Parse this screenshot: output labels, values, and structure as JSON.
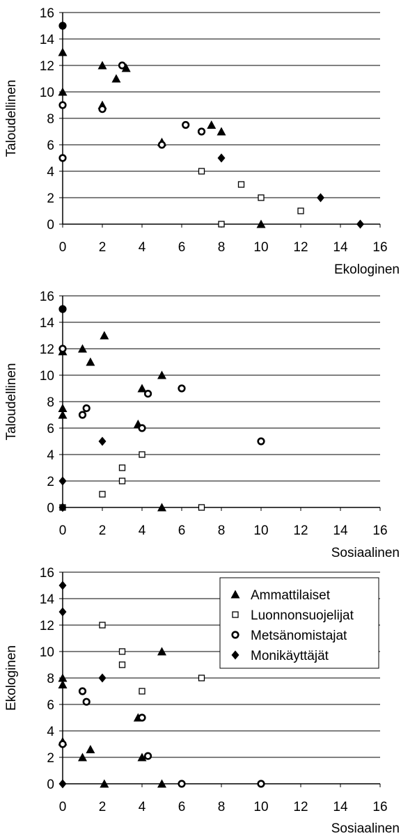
{
  "chart_data": [
    {
      "type": "scatter",
      "xlabel": "Ekologinen",
      "ylabel": "Taloudellinen",
      "xlim": [
        0,
        16
      ],
      "ylim": [
        0,
        16
      ],
      "xticks": [
        0,
        2,
        4,
        6,
        8,
        10,
        12,
        14,
        16
      ],
      "yticks": [
        0,
        2,
        4,
        6,
        8,
        10,
        12,
        14,
        16
      ],
      "grid": "horizontal",
      "series": [
        {
          "name": "Ammattilaiset",
          "marker": "triangle",
          "points": [
            [
              0,
              13
            ],
            [
              0,
              10
            ],
            [
              2,
              12
            ],
            [
              2,
              9
            ],
            [
              2.7,
              11
            ],
            [
              3.2,
              11.8
            ],
            [
              5,
              6.2
            ],
            [
              7.5,
              7.5
            ],
            [
              8,
              7
            ],
            [
              10,
              0
            ]
          ]
        },
        {
          "name": "Luonnonsuojelijat",
          "marker": "square",
          "points": [
            [
              7,
              4
            ],
            [
              8,
              0
            ],
            [
              9,
              3
            ],
            [
              10,
              2
            ],
            [
              12,
              1
            ]
          ]
        },
        {
          "name": "Metsänomistajat",
          "marker": "circle",
          "points": [
            [
              0,
              15
            ],
            [
              0,
              9
            ],
            [
              0,
              5
            ],
            [
              2,
              8.7
            ],
            [
              3,
              12
            ],
            [
              5,
              6
            ],
            [
              6.2,
              7.5
            ],
            [
              7,
              7
            ]
          ]
        },
        {
          "name": "Monikäyttäjät",
          "marker": "diamond",
          "points": [
            [
              0,
              15
            ],
            [
              8,
              5
            ],
            [
              13,
              2
            ],
            [
              15,
              0
            ]
          ]
        }
      ]
    },
    {
      "type": "scatter",
      "xlabel": "Sosiaalinen",
      "ylabel": "Taloudellinen",
      "xlim": [
        0,
        16
      ],
      "ylim": [
        0,
        16
      ],
      "xticks": [
        0,
        2,
        4,
        6,
        8,
        10,
        12,
        14,
        16
      ],
      "yticks": [
        0,
        2,
        4,
        6,
        8,
        10,
        12,
        14,
        16
      ],
      "grid": "horizontal",
      "series": [
        {
          "name": "Ammattilaiset",
          "marker": "triangle",
          "points": [
            [
              0,
              11.8
            ],
            [
              0,
              7.5
            ],
            [
              0,
              7
            ],
            [
              1,
              12
            ],
            [
              1.4,
              11
            ],
            [
              2.1,
              13
            ],
            [
              3.8,
              6.3
            ],
            [
              4,
              9
            ],
            [
              5,
              10
            ],
            [
              5,
              0
            ]
          ]
        },
        {
          "name": "Luonnonsuojelijat",
          "marker": "square",
          "points": [
            [
              0,
              0
            ],
            [
              2,
              1
            ],
            [
              3,
              3
            ],
            [
              3,
              2
            ],
            [
              4,
              4
            ],
            [
              7,
              0
            ]
          ]
        },
        {
          "name": "Metsänomistajat",
          "marker": "circle",
          "points": [
            [
              0,
              15
            ],
            [
              0,
              12
            ],
            [
              1,
              7
            ],
            [
              1.2,
              7.5
            ],
            [
              4,
              6
            ],
            [
              4.3,
              8.6
            ],
            [
              6,
              9
            ],
            [
              10,
              5
            ]
          ]
        },
        {
          "name": "Monikäyttäjät",
          "marker": "diamond",
          "points": [
            [
              0,
              15
            ],
            [
              0,
              2
            ],
            [
              0,
              0
            ],
            [
              2,
              5
            ]
          ]
        }
      ]
    },
    {
      "type": "scatter",
      "xlabel": "Sosiaalinen",
      "ylabel": "Ekologinen",
      "xlim": [
        0,
        16
      ],
      "ylim": [
        0,
        16
      ],
      "xticks": [
        0,
        2,
        4,
        6,
        8,
        10,
        12,
        14,
        16
      ],
      "yticks": [
        0,
        2,
        4,
        6,
        8,
        10,
        12,
        14,
        16
      ],
      "grid": "horizontal",
      "legend": {
        "position": "top-right",
        "entries": [
          {
            "label": "Ammattilaiset",
            "marker": "triangle"
          },
          {
            "label": "Luonnonsuojelijat",
            "marker": "square"
          },
          {
            "label": "Metsänomistajat",
            "marker": "circle"
          },
          {
            "label": "Monikäyttäjät",
            "marker": "diamond"
          }
        ]
      },
      "series": [
        {
          "name": "Ammattilaiset",
          "marker": "triangle",
          "points": [
            [
              0,
              8
            ],
            [
              0,
              7.5
            ],
            [
              0,
              3.2
            ],
            [
              1,
              2
            ],
            [
              1.4,
              2.6
            ],
            [
              2.1,
              0
            ],
            [
              3.8,
              5
            ],
            [
              4,
              2
            ],
            [
              5,
              10
            ],
            [
              5,
              0
            ]
          ]
        },
        {
          "name": "Luonnonsuojelijat",
          "marker": "square",
          "points": [
            [
              2,
              12
            ],
            [
              3,
              10
            ],
            [
              3,
              9
            ],
            [
              4,
              7
            ],
            [
              7,
              8
            ]
          ]
        },
        {
          "name": "Metsänomistajat",
          "marker": "circle",
          "points": [
            [
              0,
              3
            ],
            [
              1,
              7
            ],
            [
              1.2,
              6.2
            ],
            [
              4,
              5
            ],
            [
              4.3,
              2.1
            ],
            [
              6,
              0
            ],
            [
              10,
              0
            ]
          ]
        },
        {
          "name": "Monikäyttäjät",
          "marker": "diamond",
          "points": [
            [
              0,
              15
            ],
            [
              0,
              13
            ],
            [
              0,
              0
            ],
            [
              2,
              8
            ]
          ]
        }
      ]
    }
  ]
}
